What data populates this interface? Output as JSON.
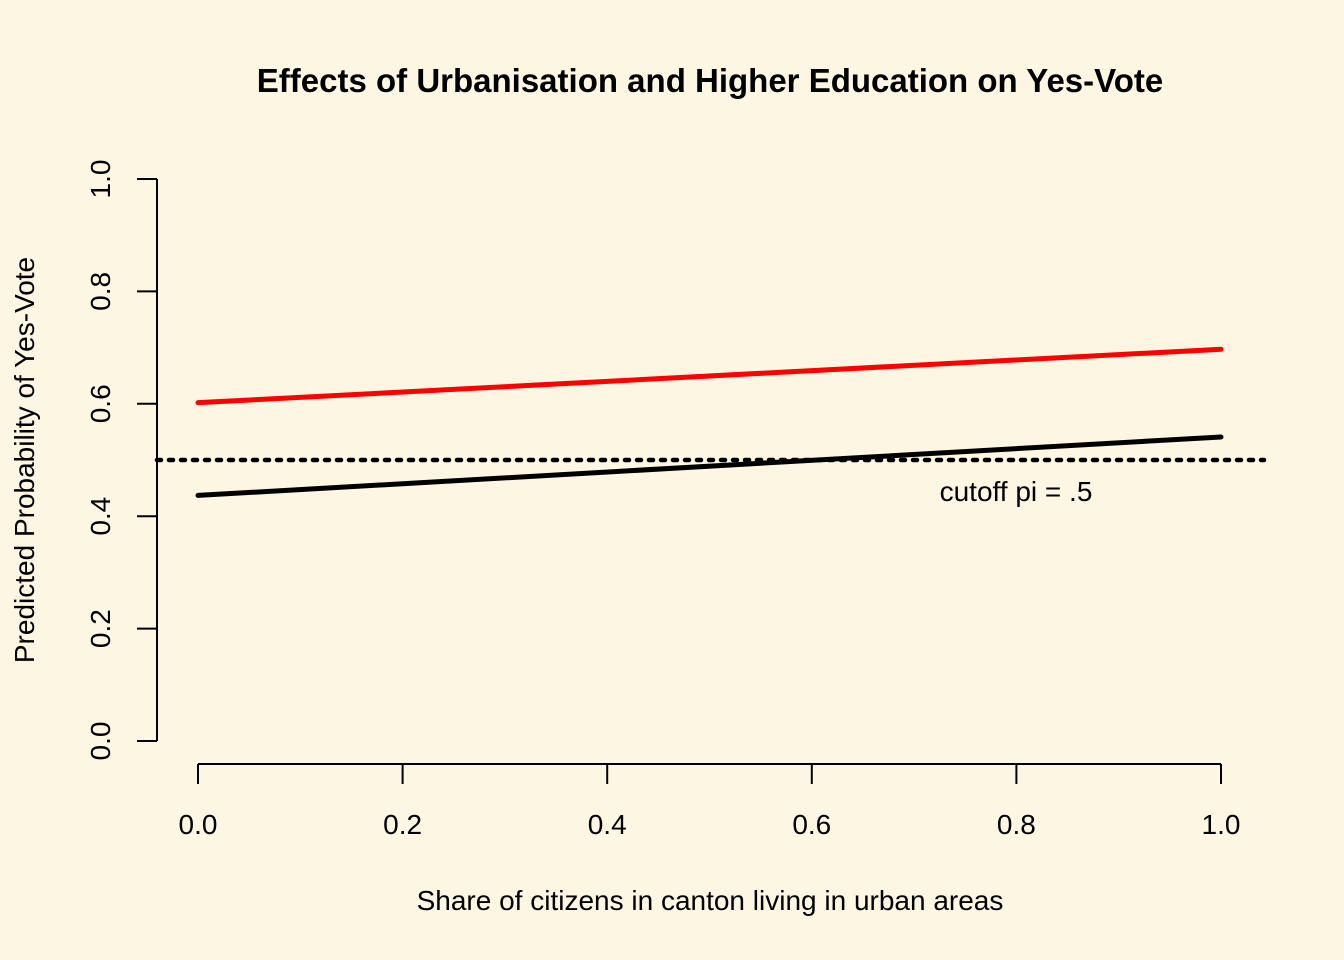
{
  "chart_data": {
    "type": "line",
    "title": "Effects of Urbanisation and Higher Education on Yes-Vote",
    "xlabel": "Share of citizens in canton living in urban areas",
    "ylabel": "Predicted Probability of Yes-Vote",
    "xlim": [
      0,
      1
    ],
    "ylim": [
      0,
      1
    ],
    "x_ticks": [
      "0.0",
      "0.2",
      "0.4",
      "0.6",
      "0.8",
      "1.0"
    ],
    "y_ticks": [
      "0.0",
      "0.2",
      "0.4",
      "0.6",
      "0.8",
      "1.0"
    ],
    "grid": false,
    "series": [
      {
        "color": "#ff0000",
        "x": [
          0,
          1
        ],
        "values": [
          0.602,
          0.697
        ]
      },
      {
        "color": "#000000",
        "x": [
          0,
          1
        ],
        "values": [
          0.437,
          0.541
        ]
      }
    ],
    "reference_line": {
      "y": 0.5,
      "style": "dotted",
      "color": "#000000"
    },
    "annotation": {
      "text": "cutoff pi = .5",
      "x": 0.8,
      "y": 0.445
    }
  }
}
